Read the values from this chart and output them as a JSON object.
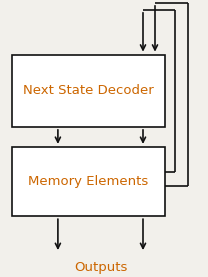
{
  "bg_color": "#f2f0eb",
  "box1_label": "Next State Decoder",
  "box2_label": "Memory Elements",
  "output_label": "Outputs",
  "box_facecolor": "white",
  "box_edgecolor": "#111111",
  "arrow_color": "#111111",
  "text_color_box": "#cc6600",
  "text_color_output": "#cc6600",
  "lw": 1.2,
  "arrowhead_scale": 9,
  "font_size_box": 9.5,
  "font_size_output": 9.5,
  "figw": 2.08,
  "figh": 2.77,
  "dpi": 100
}
